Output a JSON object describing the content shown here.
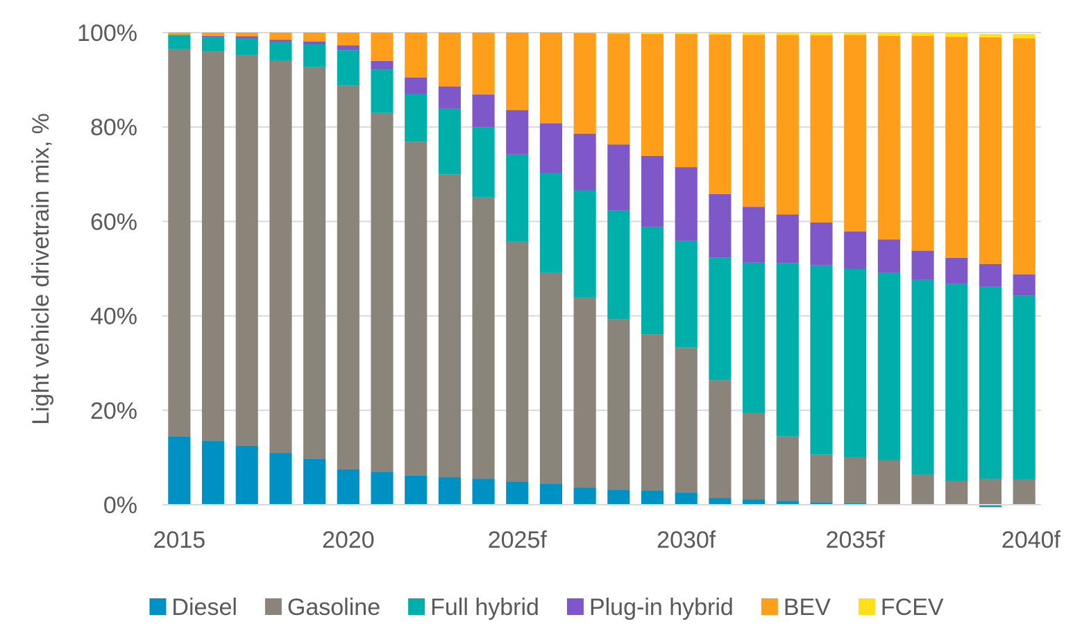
{
  "chart_data": {
    "type": "bar",
    "stacked": true,
    "title": "",
    "xlabel": "",
    "ylabel": "Light vehicle drivetrain mix, %",
    "ylim": [
      0,
      100
    ],
    "y_ticks": [
      "0%",
      "20%",
      "40%",
      "60%",
      "80%",
      "100%"
    ],
    "grid": true,
    "legend_position": "bottom",
    "categories": [
      "2015",
      "2016",
      "2017",
      "2018",
      "2019",
      "2020",
      "2021",
      "2022",
      "2023",
      "2024",
      "2025f",
      "2026f",
      "2027f",
      "2028f",
      "2029f",
      "2030f",
      "2031f",
      "2032f",
      "2033f",
      "2034f",
      "2035f",
      "2036f",
      "2037f",
      "2038f",
      "2039f",
      "2040f"
    ],
    "x_tick_labels": [
      "2015",
      "",
      "",
      "",
      "",
      "2020",
      "",
      "",
      "",
      "",
      "2025f",
      "",
      "",
      "",
      "",
      "2030f",
      "",
      "",
      "",
      "",
      "2035f",
      "",
      "",
      "",
      "",
      "2040f"
    ],
    "series": [
      {
        "name": "Diesel",
        "color": "#0091C4",
        "values": [
          14.5,
          13.5,
          12.5,
          11.0,
          9.7,
          7.5,
          7.0,
          6.2,
          5.8,
          5.5,
          4.9,
          4.4,
          3.6,
          3.2,
          3.0,
          2.6,
          1.4,
          1.1,
          0.8,
          0.5,
          0.3,
          0.1,
          0.0,
          0.0,
          -0.5,
          0.0
        ]
      },
      {
        "name": "Gasoline",
        "color": "#8A847A",
        "values": [
          82.0,
          82.5,
          82.7,
          83.0,
          83.0,
          81.3,
          76.0,
          70.7,
          64.2,
          59.6,
          50.8,
          44.8,
          40.2,
          36.1,
          33.1,
          30.7,
          25.0,
          18.3,
          13.7,
          10.2,
          9.7,
          9.3,
          6.4,
          5.0,
          5.5,
          5.3
        ]
      },
      {
        "name": "Full hybrid",
        "color": "#00AFAA",
        "values": [
          3.0,
          3.0,
          3.5,
          4.0,
          4.8,
          7.5,
          9.2,
          10.1,
          13.9,
          14.9,
          18.5,
          21.0,
          22.8,
          23.0,
          22.8,
          22.6,
          26.0,
          31.9,
          36.7,
          40.0,
          40.0,
          39.8,
          41.2,
          41.8,
          40.7,
          39.0
        ]
      },
      {
        "name": "Plug-in hybrid",
        "color": "#7E57C8",
        "values": [
          0.0,
          0.3,
          0.5,
          0.5,
          0.6,
          1.0,
          1.8,
          3.5,
          4.7,
          6.9,
          9.4,
          10.6,
          12.0,
          14.0,
          15.0,
          15.6,
          13.4,
          11.8,
          10.3,
          9.1,
          7.9,
          7.0,
          6.2,
          5.5,
          4.8,
          4.5
        ]
      },
      {
        "name": "BEV",
        "color": "#FF9E1B",
        "values": [
          0.5,
          0.7,
          0.8,
          1.5,
          1.9,
          2.7,
          6.0,
          9.5,
          11.4,
          13.1,
          16.4,
          19.2,
          21.3,
          23.5,
          25.8,
          28.2,
          33.8,
          36.4,
          38.0,
          39.6,
          41.6,
          43.1,
          45.5,
          46.8,
          48.0,
          50.0
        ]
      },
      {
        "name": "FCEV",
        "color": "#FFE01A",
        "values": [
          0.0,
          0.0,
          0.0,
          0.0,
          0.0,
          0.0,
          0.0,
          0.0,
          0.0,
          0.0,
          0.0,
          0.0,
          0.1,
          0.2,
          0.3,
          0.3,
          0.4,
          0.5,
          0.5,
          0.6,
          0.5,
          0.7,
          0.7,
          0.9,
          0.7,
          0.9
        ]
      }
    ]
  }
}
